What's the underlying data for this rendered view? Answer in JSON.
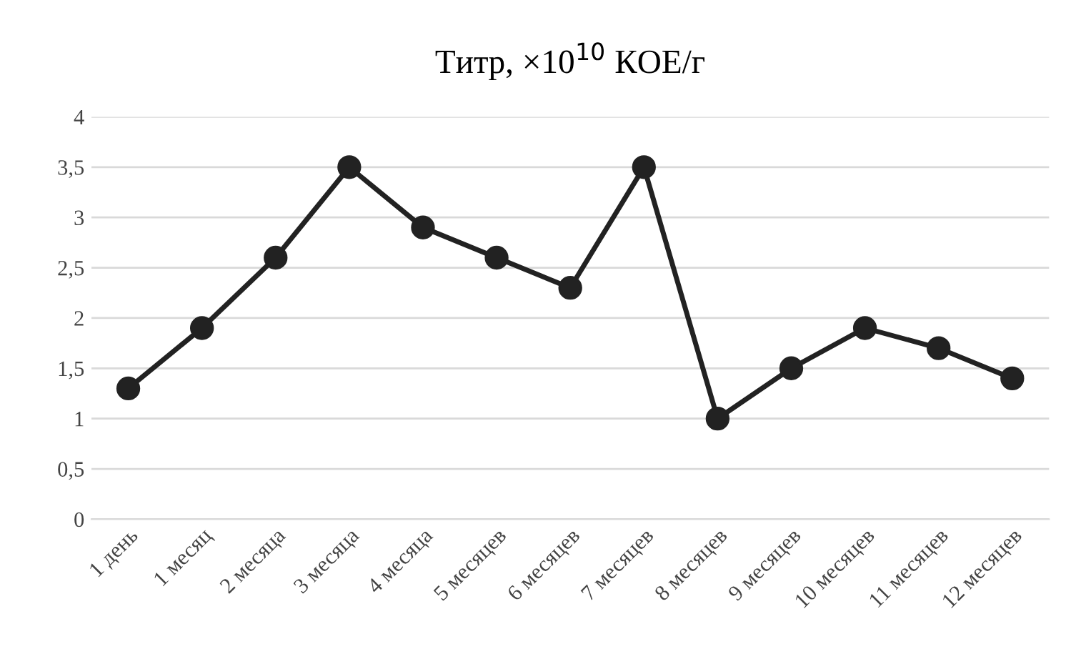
{
  "chart_data": {
    "type": "line",
    "title": "Титр, ×10$^{10}$ КОЕ/г",
    "categories": [
      "1 день",
      "1 месяц",
      "2 месяца",
      "3 месяца",
      "4 месяца",
      "5 месяцев",
      "6 месяцев",
      "7 месяцев",
      "8 месяцев",
      "9 месяцев",
      "10 месяцев",
      "11 месяцев",
      "12 месяцев"
    ],
    "series": [
      {
        "color": "#222222",
        "values": [
          1.3,
          1.9,
          2.6,
          3.5,
          2.9,
          2.6,
          2.3,
          3.5,
          1.0,
          1.5,
          1.9,
          1.7,
          1.4
        ]
      }
    ],
    "ylim": [
      0,
      4
    ],
    "yticks": [
      0,
      {
        "value": 0.5,
        "label": "0,5"
      },
      1,
      {
        "value": 1.5,
        "label": "1,5"
      },
      2,
      {
        "value": 2.5,
        "label": "2,5"
      },
      3,
      {
        "value": 3.5,
        "label": "3,5"
      },
      4
    ],
    "grid": "y",
    "marker": "circle",
    "line_style": "solid"
  }
}
